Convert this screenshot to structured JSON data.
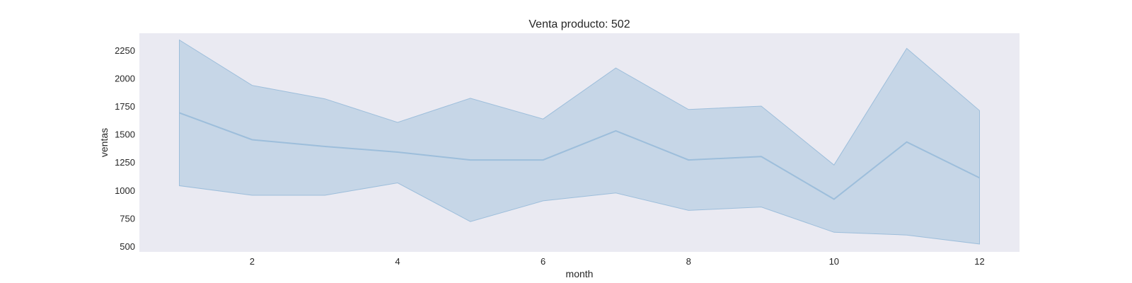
{
  "chart_data": {
    "type": "line",
    "title": "Venta producto: 502",
    "xlabel": "month",
    "ylabel": "ventas",
    "x": [
      1,
      2,
      3,
      4,
      5,
      6,
      7,
      8,
      9,
      10,
      11,
      12
    ],
    "series": [
      {
        "values": [
          1690,
          1450,
          1390,
          1340,
          1270,
          1270,
          1530,
          1270,
          1300,
          920,
          1430,
          1110
        ],
        "band_upper": [
          2340,
          1935,
          1815,
          1605,
          1820,
          1635,
          2090,
          1720,
          1750,
          1225,
          2265,
          1710
        ],
        "band_lower": [
          1040,
          955,
          955,
          1065,
          720,
          905,
          975,
          820,
          850,
          625,
          600,
          520
        ]
      }
    ],
    "xlim": [
      0.45,
      12.55
    ],
    "ylim": [
      450,
      2400
    ],
    "xticks": [
      2,
      4,
      6,
      8,
      10,
      12
    ],
    "yticks": [
      500,
      750,
      1000,
      1250,
      1500,
      1750,
      2000,
      2250
    ],
    "grid": false,
    "colors": {
      "plot_background": "#EAEAF2",
      "line": "#9DBEDB",
      "band_fill": "#A8C5DF",
      "band_fill_opacity": 0.55
    }
  }
}
